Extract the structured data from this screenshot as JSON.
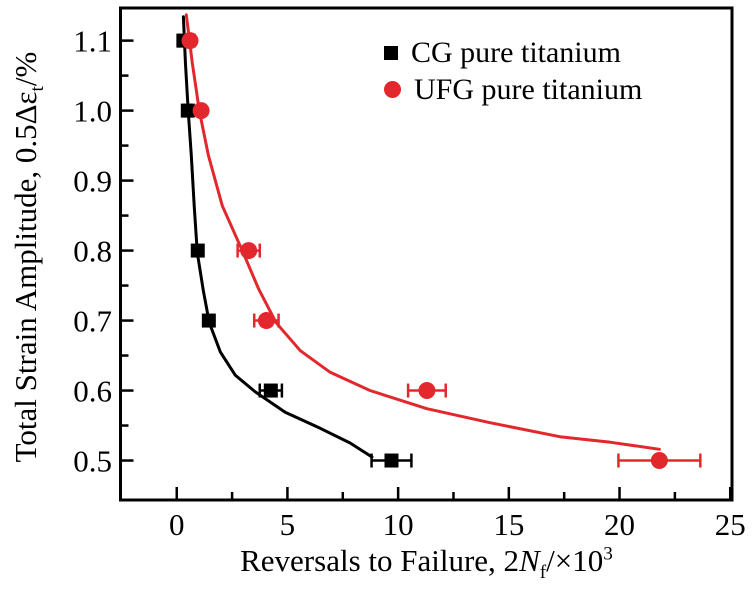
{
  "figure": {
    "background": "#ffffff",
    "axis_color": "#000000"
  },
  "chart_data": {
    "type": "scatter",
    "title": "",
    "xlabel": "Reversals to Failure, 2Nf/×10³",
    "ylabel": "Total Strain Amplitude, 0.5Δεt/%",
    "xlabel_parts": {
      "prefix": "Reversals to Failure, 2",
      "italic_var": "N",
      "sub": "f",
      "mid": "/×10",
      "sup": "3"
    },
    "ylabel_parts": {
      "prefix": "Total Strain Amplitude, 0.5Δε",
      "sub": "t",
      "suffix": "/%"
    },
    "xlim": [
      -2.54,
      25.08
    ],
    "ylim": [
      0.4436,
      1.1466
    ],
    "x_major_ticks": [
      0,
      5,
      10,
      15,
      20,
      25
    ],
    "x_tick_labels": [
      "0",
      "5",
      "10",
      "15",
      "20",
      "25"
    ],
    "x_minor_ticks": [
      2.5,
      7.5,
      12.5,
      17.5,
      22.5
    ],
    "y_major_ticks": [
      0.5,
      0.6,
      0.7,
      0.8,
      0.9,
      1.0,
      1.1
    ],
    "y_tick_labels": [
      "0.5",
      "0.6",
      "0.7",
      "0.8",
      "0.9",
      "1.0",
      "1.1"
    ],
    "y_minor_ticks": [
      0.55,
      0.65,
      0.75,
      0.85,
      0.95,
      1.05
    ],
    "grid": false,
    "legend_position": "upper-right-inside",
    "series": [
      {
        "key": "cg",
        "name": "CG pure titanium",
        "color": "#000000",
        "marker": "square",
        "points": [
          {
            "x": 0.3,
            "y": 1.1,
            "xerr": 0.2
          },
          {
            "x": 0.5,
            "y": 1.0,
            "xerr": 0.15
          },
          {
            "x": 0.95,
            "y": 0.8,
            "xerr": 0
          },
          {
            "x": 1.45,
            "y": 0.7,
            "xerr": 0
          },
          {
            "x": 4.25,
            "y": 0.6,
            "xerr": 0.5
          },
          {
            "x": 9.7,
            "y": 0.5,
            "xerr": 0.9
          }
        ],
        "fit_curve": [
          [
            0.3,
            1.134
          ],
          [
            0.39,
            1.069
          ],
          [
            0.52,
            1.0
          ],
          [
            0.66,
            0.936
          ],
          [
            0.79,
            0.864
          ],
          [
            0.93,
            0.797
          ],
          [
            1.2,
            0.743
          ],
          [
            1.47,
            0.697
          ],
          [
            1.97,
            0.655
          ],
          [
            2.64,
            0.622
          ],
          [
            3.55,
            0.598
          ],
          [
            4.9,
            0.569
          ],
          [
            6.48,
            0.546
          ],
          [
            7.83,
            0.525
          ],
          [
            8.82,
            0.505
          ]
        ]
      },
      {
        "key": "ufg",
        "name": "UFG pure titanium",
        "color": "#e2282c",
        "marker": "circle",
        "points": [
          {
            "x": 0.6,
            "y": 1.1,
            "xerr": 0.2
          },
          {
            "x": 1.1,
            "y": 1.0,
            "xerr": 0
          },
          {
            "x": 3.25,
            "y": 0.8,
            "xerr": 0.5
          },
          {
            "x": 4.05,
            "y": 0.7,
            "xerr": 0.55
          },
          {
            "x": 11.3,
            "y": 0.6,
            "xerr": 0.85
          },
          {
            "x": 21.8,
            "y": 0.5,
            "xerr": 1.85
          }
        ],
        "fit_curve": [
          [
            0.43,
            1.137
          ],
          [
            0.7,
            1.069
          ],
          [
            1.02,
            1.0
          ],
          [
            1.43,
            0.936
          ],
          [
            2.06,
            0.864
          ],
          [
            3.0,
            0.797
          ],
          [
            3.7,
            0.745
          ],
          [
            4.49,
            0.697
          ],
          [
            5.58,
            0.657
          ],
          [
            6.93,
            0.626
          ],
          [
            8.73,
            0.6
          ],
          [
            11.3,
            0.574
          ],
          [
            14.15,
            0.554
          ],
          [
            17.3,
            0.534
          ],
          [
            19.6,
            0.526
          ],
          [
            21.8,
            0.516
          ]
        ]
      }
    ]
  }
}
